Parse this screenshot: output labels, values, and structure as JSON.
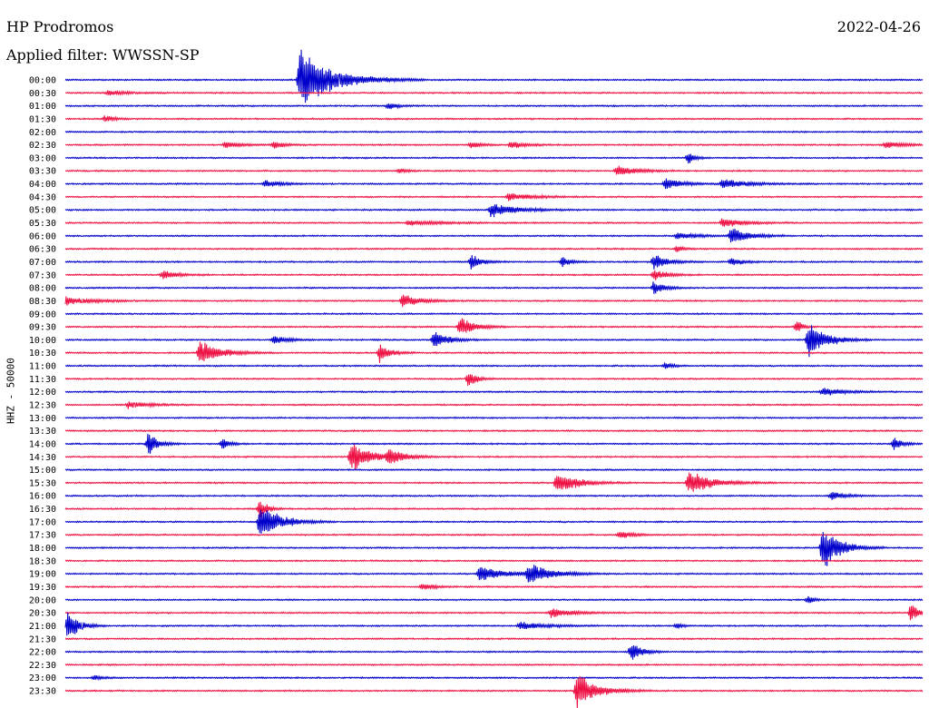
{
  "header": {
    "station": "HP Prodromos",
    "date": "2022-04-26",
    "filter": "Applied filter: WWSSN-SP"
  },
  "colors": {
    "line_a": "#0000cc",
    "line_b": "#ee1144"
  },
  "chart_data": {
    "type": "line",
    "title": "HP Prodromos",
    "ylabel": "HHZ - 50000",
    "rows": [
      "00:00",
      "00:30",
      "01:00",
      "01:30",
      "02:00",
      "02:30",
      "03:00",
      "03:30",
      "04:00",
      "04:30",
      "05:00",
      "05:30",
      "06:00",
      "06:30",
      "07:00",
      "07:30",
      "08:00",
      "08:30",
      "09:00",
      "09:30",
      "10:00",
      "10:30",
      "11:00",
      "11:30",
      "12:00",
      "12:30",
      "13:00",
      "13:30",
      "14:00",
      "14:30",
      "15:00",
      "15:30",
      "16:00",
      "16:30",
      "17:00",
      "17:30",
      "18:00",
      "18:30",
      "19:00",
      "19:30",
      "20:00",
      "20:30",
      "21:00",
      "21:30",
      "22:00",
      "22:30",
      "23:00",
      "23:30"
    ],
    "row_minutes": 30,
    "series_colors": [
      "#0000cc",
      "#ee1144"
    ],
    "events": [
      {
        "row": 0,
        "minute": 8.2,
        "amp": 36,
        "dur": 2.0
      },
      {
        "row": 1,
        "minute": 1.5,
        "amp": 3,
        "dur": 1.0
      },
      {
        "row": 2,
        "minute": 11.3,
        "amp": 4,
        "dur": 0.6
      },
      {
        "row": 3,
        "minute": 1.4,
        "amp": 4,
        "dur": 0.6
      },
      {
        "row": 5,
        "minute": 5.6,
        "amp": 4,
        "dur": 1.0
      },
      {
        "row": 5,
        "minute": 7.3,
        "amp": 5,
        "dur": 0.6
      },
      {
        "row": 5,
        "minute": 14.2,
        "amp": 4,
        "dur": 0.6
      },
      {
        "row": 5,
        "minute": 15.6,
        "amp": 5,
        "dur": 0.8
      },
      {
        "row": 5,
        "minute": 28.7,
        "amp": 4,
        "dur": 1.2
      },
      {
        "row": 6,
        "minute": 21.8,
        "amp": 7,
        "dur": 0.4
      },
      {
        "row": 7,
        "minute": 11.7,
        "amp": 3,
        "dur": 0.5
      },
      {
        "row": 7,
        "minute": 19.3,
        "amp": 6,
        "dur": 1.2
      },
      {
        "row": 8,
        "minute": 7.0,
        "amp": 4,
        "dur": 1.0
      },
      {
        "row": 8,
        "minute": 21.0,
        "amp": 7,
        "dur": 1.0
      },
      {
        "row": 8,
        "minute": 23.0,
        "amp": 6,
        "dur": 1.5
      },
      {
        "row": 9,
        "minute": 15.5,
        "amp": 5,
        "dur": 1.4
      },
      {
        "row": 10,
        "minute": 14.9,
        "amp": 9,
        "dur": 1.4
      },
      {
        "row": 11,
        "minute": 12.0,
        "amp": 3,
        "dur": 2.0
      },
      {
        "row": 11,
        "minute": 23.0,
        "amp": 6,
        "dur": 1.2
      },
      {
        "row": 12,
        "minute": 23.3,
        "amp": 11,
        "dur": 1.0
      },
      {
        "row": 12,
        "minute": 21.4,
        "amp": 4,
        "dur": 1.2
      },
      {
        "row": 13,
        "minute": 21.4,
        "amp": 4,
        "dur": 0.4
      },
      {
        "row": 14,
        "minute": 14.2,
        "amp": 10,
        "dur": 0.6
      },
      {
        "row": 14,
        "minute": 17.4,
        "amp": 6,
        "dur": 0.5
      },
      {
        "row": 14,
        "minute": 20.6,
        "amp": 10,
        "dur": 0.8
      },
      {
        "row": 14,
        "minute": 23.3,
        "amp": 6,
        "dur": 0.6
      },
      {
        "row": 15,
        "minute": 3.4,
        "amp": 6,
        "dur": 0.8
      },
      {
        "row": 15,
        "minute": 20.6,
        "amp": 7,
        "dur": 0.8
      },
      {
        "row": 16,
        "minute": 20.6,
        "amp": 9,
        "dur": 0.6
      },
      {
        "row": 17,
        "minute": 0.0,
        "amp": 6,
        "dur": 1.5
      },
      {
        "row": 17,
        "minute": 11.8,
        "amp": 8,
        "dur": 1.0
      },
      {
        "row": 19,
        "minute": 13.8,
        "amp": 14,
        "dur": 0.8
      },
      {
        "row": 19,
        "minute": 25.6,
        "amp": 10,
        "dur": 0.3
      },
      {
        "row": 20,
        "minute": 7.3,
        "amp": 6,
        "dur": 0.8
      },
      {
        "row": 20,
        "minute": 12.9,
        "amp": 12,
        "dur": 0.8
      },
      {
        "row": 20,
        "minute": 26.0,
        "amp": 24,
        "dur": 1.0
      },
      {
        "row": 21,
        "minute": 4.7,
        "amp": 16,
        "dur": 1.2
      },
      {
        "row": 21,
        "minute": 11.0,
        "amp": 11,
        "dur": 0.6
      },
      {
        "row": 22,
        "minute": 21.0,
        "amp": 5,
        "dur": 0.4
      },
      {
        "row": 23,
        "minute": 14.1,
        "amp": 10,
        "dur": 0.5
      },
      {
        "row": 24,
        "minute": 26.5,
        "amp": 5,
        "dur": 1.2
      },
      {
        "row": 25,
        "minute": 2.2,
        "amp": 4,
        "dur": 1.2
      },
      {
        "row": 28,
        "minute": 2.9,
        "amp": 14,
        "dur": 0.6
      },
      {
        "row": 28,
        "minute": 5.5,
        "amp": 8,
        "dur": 0.4
      },
      {
        "row": 28,
        "minute": 29.0,
        "amp": 8,
        "dur": 0.5
      },
      {
        "row": 29,
        "minute": 10.0,
        "amp": 18,
        "dur": 1.2
      },
      {
        "row": 29,
        "minute": 11.3,
        "amp": 8,
        "dur": 1.0
      },
      {
        "row": 31,
        "minute": 17.2,
        "amp": 14,
        "dur": 1.2
      },
      {
        "row": 31,
        "minute": 21.8,
        "amp": 14,
        "dur": 1.4
      },
      {
        "row": 32,
        "minute": 26.8,
        "amp": 6,
        "dur": 0.8
      },
      {
        "row": 33,
        "minute": 6.8,
        "amp": 14,
        "dur": 0.4
      },
      {
        "row": 34,
        "minute": 6.8,
        "amp": 22,
        "dur": 1.2
      },
      {
        "row": 35,
        "minute": 19.4,
        "amp": 5,
        "dur": 0.8
      },
      {
        "row": 36,
        "minute": 26.5,
        "amp": 28,
        "dur": 1.0
      },
      {
        "row": 38,
        "minute": 14.5,
        "amp": 10,
        "dur": 1.4
      },
      {
        "row": 38,
        "minute": 16.2,
        "amp": 12,
        "dur": 1.4
      },
      {
        "row": 39,
        "minute": 12.5,
        "amp": 5,
        "dur": 0.6
      },
      {
        "row": 40,
        "minute": 26.0,
        "amp": 6,
        "dur": 0.3
      },
      {
        "row": 41,
        "minute": 17.0,
        "amp": 6,
        "dur": 1.2
      },
      {
        "row": 41,
        "minute": 29.6,
        "amp": 12,
        "dur": 0.4
      },
      {
        "row": 42,
        "minute": 0.1,
        "amp": 20,
        "dur": 0.6
      },
      {
        "row": 42,
        "minute": 15.9,
        "amp": 5,
        "dur": 1.5
      },
      {
        "row": 42,
        "minute": 21.4,
        "amp": 5,
        "dur": 0.3
      },
      {
        "row": 44,
        "minute": 19.8,
        "amp": 12,
        "dur": 0.6
      },
      {
        "row": 46,
        "minute": 1.0,
        "amp": 3,
        "dur": 0.5
      },
      {
        "row": 47,
        "minute": 17.9,
        "amp": 22,
        "dur": 1.2
      }
    ]
  }
}
